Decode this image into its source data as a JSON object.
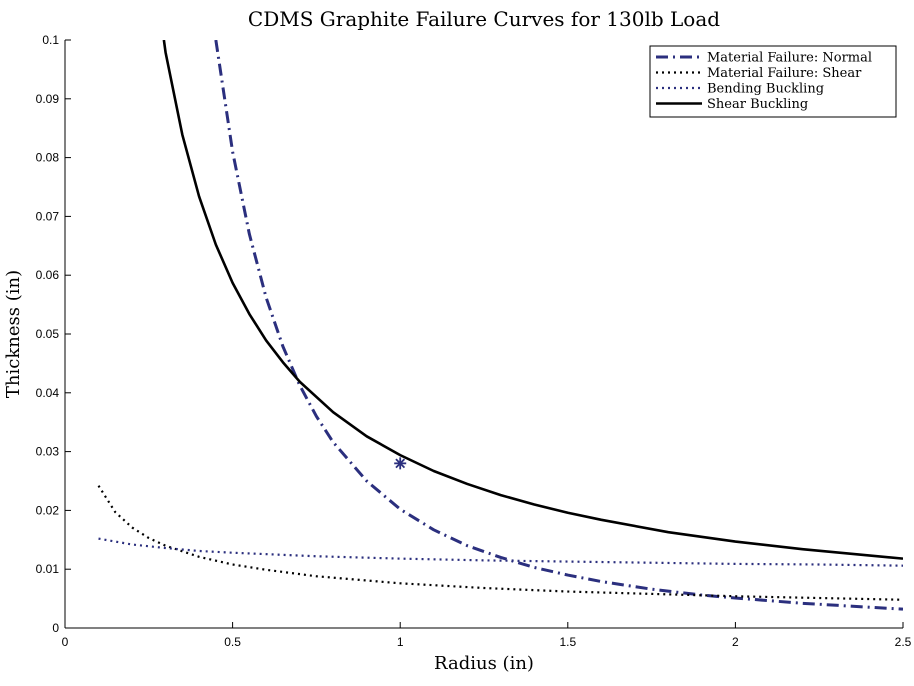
{
  "chart_data": {
    "type": "line",
    "title": "CDMS Graphite Failure Curves for 130lb Load",
    "xlabel": "Radius (in)",
    "ylabel": "Thickness (in)",
    "xlim": [
      0,
      2.5
    ],
    "ylim": [
      0,
      0.1
    ],
    "xticks": [
      "0",
      "0.5",
      "1",
      "1.5",
      "2",
      "2.5"
    ],
    "yticks": [
      "0",
      "0.01",
      "0.02",
      "0.03",
      "0.04",
      "0.05",
      "0.06",
      "0.07",
      "0.08",
      "0.09",
      "0.1"
    ],
    "grid": false,
    "legend_position": "top-right",
    "series": [
      {
        "name": "Material Failure: Normal",
        "color": "#2b2f7e",
        "style": "dashdot",
        "x": [
          0.45,
          0.5,
          0.55,
          0.6,
          0.65,
          0.7,
          0.75,
          0.8,
          0.9,
          1.0,
          1.1,
          1.2,
          1.3,
          1.4,
          1.5,
          1.6,
          1.75,
          1.9,
          2.0,
          2.2,
          2.5
        ],
        "y": [
          0.1,
          0.081,
          0.067,
          0.0562,
          0.0479,
          0.0413,
          0.036,
          0.0316,
          0.025,
          0.0202,
          0.0167,
          0.014,
          0.012,
          0.0103,
          0.009,
          0.0079,
          0.0066,
          0.0056,
          0.0051,
          0.0042,
          0.0032
        ]
      },
      {
        "name": "Material Failure: Shear",
        "color": "#000000",
        "style": "dotted",
        "x": [
          0.1,
          0.15,
          0.2,
          0.25,
          0.3,
          0.4,
          0.5,
          0.6,
          0.75,
          1.0,
          1.25,
          1.5,
          1.75,
          2.0,
          2.25,
          2.5
        ],
        "y": [
          0.0242,
          0.0197,
          0.0171,
          0.0153,
          0.014,
          0.0121,
          0.0108,
          0.0099,
          0.0088,
          0.0076,
          0.0068,
          0.0062,
          0.0058,
          0.0054,
          0.0051,
          0.0048
        ]
      },
      {
        "name": "Bending Buckling",
        "color": "#2b2f7e",
        "style": "dotted",
        "x": [
          0.1,
          0.2,
          0.3,
          0.4,
          0.5,
          0.75,
          1.0,
          1.25,
          1.5,
          1.75,
          2.0,
          2.25,
          2.5
        ],
        "y": [
          0.0152,
          0.0142,
          0.0136,
          0.0131,
          0.0128,
          0.0122,
          0.0118,
          0.0115,
          0.0113,
          0.0111,
          0.0109,
          0.0108,
          0.0106
        ]
      },
      {
        "name": "Shear Buckling",
        "color": "#000000",
        "style": "solid",
        "x": [
          0.295,
          0.3,
          0.35,
          0.4,
          0.45,
          0.5,
          0.55,
          0.6,
          0.65,
          0.7,
          0.8,
          0.9,
          1.0,
          1.1,
          1.2,
          1.3,
          1.4,
          1.5,
          1.6,
          1.8,
          2.0,
          2.2,
          2.5
        ],
        "y": [
          0.1,
          0.0979,
          0.0839,
          0.0734,
          0.0652,
          0.0587,
          0.0534,
          0.0489,
          0.0452,
          0.0419,
          0.0367,
          0.0326,
          0.0294,
          0.0267,
          0.0245,
          0.0226,
          0.021,
          0.0196,
          0.0184,
          0.0163,
          0.0147,
          0.0134,
          0.0118
        ]
      }
    ],
    "markers": [
      {
        "x": 1.0,
        "y": 0.028,
        "symbol": "asterisk",
        "color": "#2b2f7e"
      }
    ]
  }
}
